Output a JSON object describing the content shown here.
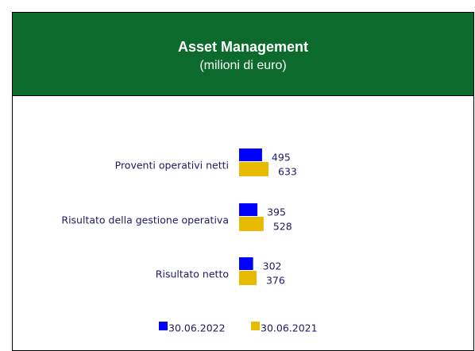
{
  "chart_data": {
    "type": "barh",
    "title": "Asset Management",
    "subtitle": "(milioni di euro)",
    "categories": [
      "Proventi operativi netti",
      "Risultato della gestione operativa",
      "Risultato netto"
    ],
    "series": [
      {
        "name": "30.06.2022",
        "color": "#0000ff",
        "values": [
          495,
          395,
          302
        ]
      },
      {
        "name": "30.06.2021",
        "color": "#e8bb00",
        "values": [
          633,
          528,
          376
        ]
      }
    ],
    "legend": "bottom"
  }
}
